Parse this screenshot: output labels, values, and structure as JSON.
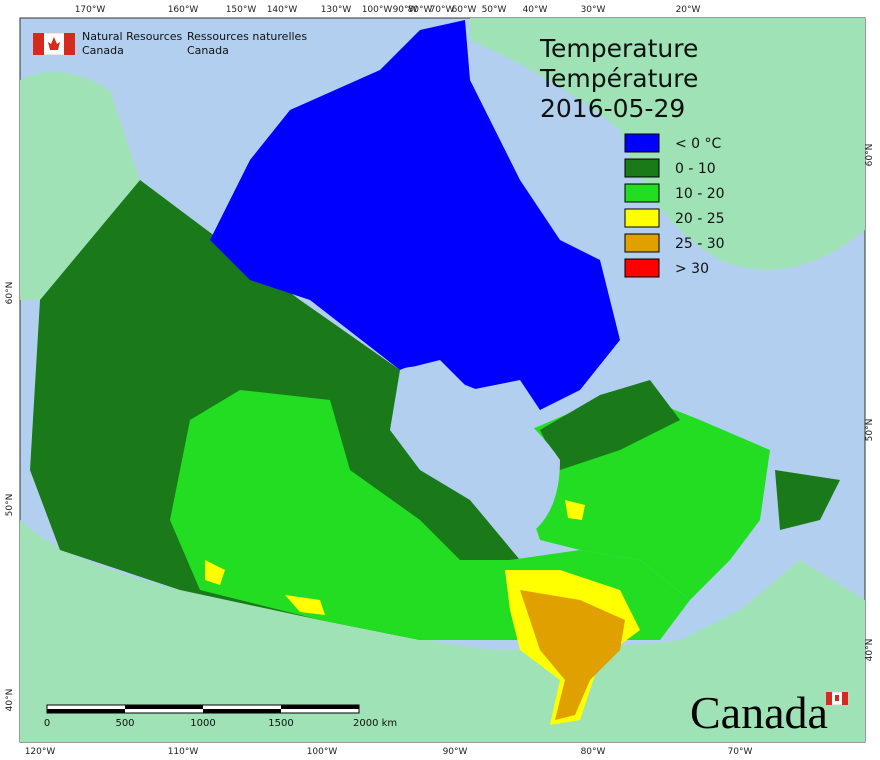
{
  "header": {
    "en": [
      "Natural Resources",
      "Canada"
    ],
    "fr": [
      "Ressources naturelles",
      "Canada"
    ]
  },
  "title": [
    "Temperature",
    "Température",
    "2016-05-29"
  ],
  "legend": [
    {
      "label": "< 0 °C",
      "color": "#0000ff"
    },
    {
      "label": "0 - 10",
      "color": "#1a7a1a"
    },
    {
      "label": "10 - 20",
      "color": "#22dd22"
    },
    {
      "label": "20 - 25",
      "color": "#ffff00"
    },
    {
      "label": "25 - 30",
      "color": "#e0a000"
    },
    {
      "label": "> 30",
      "color": "#ff0000"
    }
  ],
  "graticule": {
    "top": [
      "170°W",
      "160°W",
      "150°W",
      "140°W",
      "130°W",
      "100°W",
      "90°W",
      "80°W",
      "70°W",
      "60°W",
      "50°W",
      "40°W",
      "30°W",
      "20°W"
    ],
    "bottom": [
      "120°W",
      "110°W",
      "100°W",
      "90°W",
      "80°W",
      "70°W"
    ],
    "left": [
      "60°N",
      "50°N",
      "40°N"
    ],
    "right": [
      "60°N",
      "50°N",
      "40°N"
    ]
  },
  "scale_bar": {
    "labels": [
      "0",
      "500",
      "1000",
      "1500",
      "2000 km"
    ]
  },
  "wordmark": "Canada"
}
